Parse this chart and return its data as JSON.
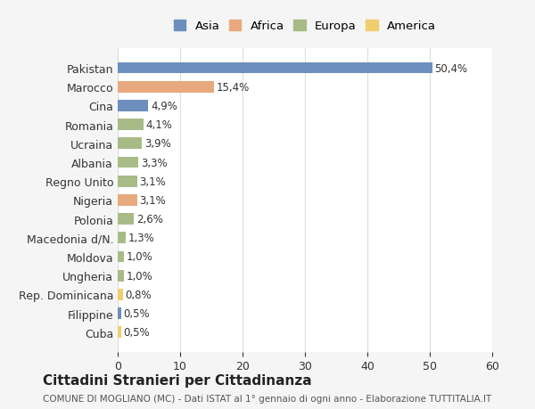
{
  "countries": [
    "Pakistan",
    "Marocco",
    "Cina",
    "Romania",
    "Ucraina",
    "Albania",
    "Regno Unito",
    "Nigeria",
    "Polonia",
    "Macedonia d/N.",
    "Moldova",
    "Ungheria",
    "Rep. Dominicana",
    "Filippine",
    "Cuba"
  ],
  "values": [
    50.4,
    15.4,
    4.9,
    4.1,
    3.9,
    3.3,
    3.1,
    3.1,
    2.6,
    1.3,
    1.0,
    1.0,
    0.8,
    0.5,
    0.5
  ],
  "labels": [
    "50,4%",
    "15,4%",
    "4,9%",
    "4,1%",
    "3,9%",
    "3,3%",
    "3,1%",
    "3,1%",
    "2,6%",
    "1,3%",
    "1,0%",
    "1,0%",
    "0,8%",
    "0,5%",
    "0,5%"
  ],
  "continents": [
    "Asia",
    "Africa",
    "Asia",
    "Europa",
    "Europa",
    "Europa",
    "Europa",
    "Africa",
    "Europa",
    "Europa",
    "Europa",
    "Europa",
    "America",
    "Asia",
    "America"
  ],
  "continent_colors": {
    "Asia": "#6d8fbd",
    "Africa": "#e8a97e",
    "Europa": "#a8bb87",
    "America": "#f0ce6e"
  },
  "legend_order": [
    "Asia",
    "Africa",
    "Europa",
    "America"
  ],
  "background_color": "#f5f5f5",
  "bar_background": "#ffffff",
  "title": "Cittadini Stranieri per Cittadinanza",
  "subtitle": "COMUNE DI MOGLIANO (MC) - Dati ISTAT al 1° gennaio di ogni anno - Elaborazione TUTTITALIA.IT",
  "xlim": [
    0,
    60
  ],
  "xticks": [
    0,
    10,
    20,
    30,
    40,
    50,
    60
  ]
}
